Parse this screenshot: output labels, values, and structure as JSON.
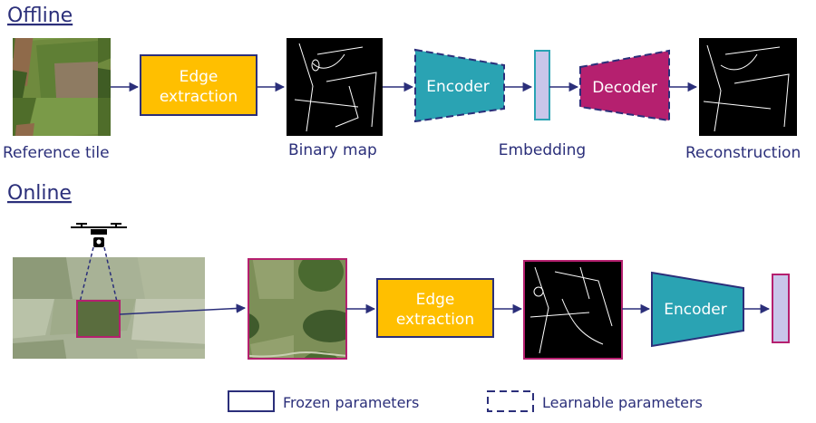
{
  "sections": {
    "offline": "Offline",
    "online": "Online"
  },
  "offline": {
    "reference_tile": "Reference tile",
    "edge_extraction_line1": "Edge",
    "edge_extraction_line2": "extraction",
    "binary_map": "Binary map",
    "encoder": "Encoder",
    "embedding": "Embedding",
    "decoder": "Decoder",
    "reconstruction": "Reconstruction"
  },
  "online": {
    "edge_extraction_line1": "Edge",
    "edge_extraction_line2": "extraction",
    "encoder": "Encoder"
  },
  "legend": {
    "frozen": "Frozen parameters",
    "learnable": "Learnable parameters"
  },
  "colors": {
    "text": "#2b2f7a",
    "arrow": "#2b2f7a",
    "edge_box": "#ffbf00",
    "encoder": "#2aa3b3",
    "decoder": "#b5206f",
    "embedding": "#c9c6ea",
    "frame_magenta": "#b5206f"
  }
}
